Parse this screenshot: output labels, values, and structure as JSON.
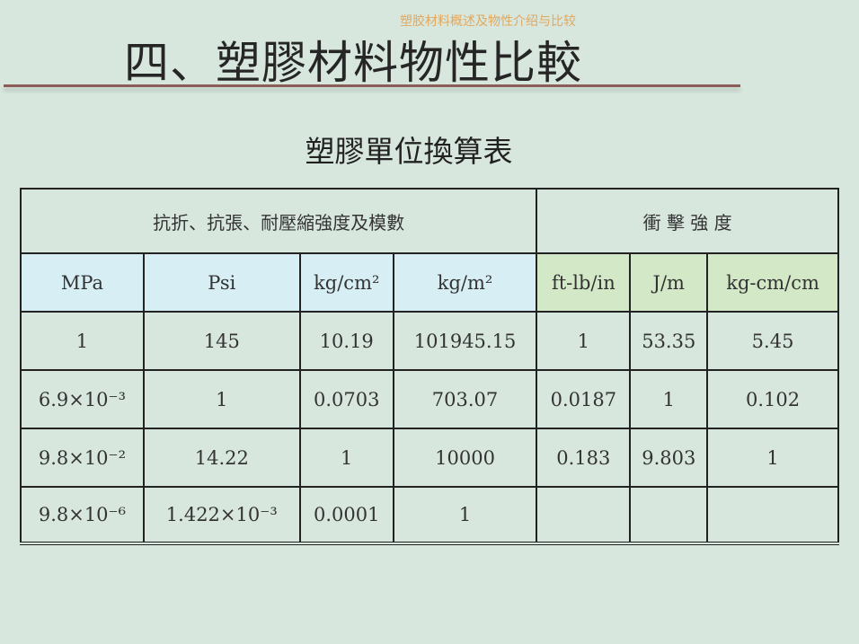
{
  "header": {
    "subtitle": "塑胶材料概述及物性介绍与比较",
    "title": "四、塑膠材料物性比較"
  },
  "caption": "塑膠單位換算表",
  "table": {
    "group_headers": [
      "抗折、抗張、耐壓縮強度及模數",
      "衝 擊 強 度"
    ],
    "units": [
      "MPa",
      "Psi",
      "kg/cm²",
      "kg/m²",
      "ft-lb/in",
      "J/m",
      "kg-cm/cm"
    ],
    "rows": [
      [
        "1",
        "145",
        "10.19",
        "101945.15",
        "1",
        "53.35",
        "5.45"
      ],
      [
        "6.9×10⁻³",
        "1",
        "0.0703",
        "703.07",
        "0.0187",
        "1",
        "0.102"
      ],
      [
        "9.8×10⁻²",
        "14.22",
        "1",
        "10000",
        "0.183",
        "9.803",
        "1"
      ],
      [
        "9.8×10⁻⁶",
        "1.422×10⁻³",
        "0.0001",
        "1",
        "",
        "",
        ""
      ]
    ]
  },
  "colors": {
    "background": "#d8e7de",
    "strength_unit_fill": "#d6eef4",
    "impact_unit_fill": "#d2e8c6",
    "title_rule": "#8c5c58",
    "subtitle": "#e0a860"
  }
}
